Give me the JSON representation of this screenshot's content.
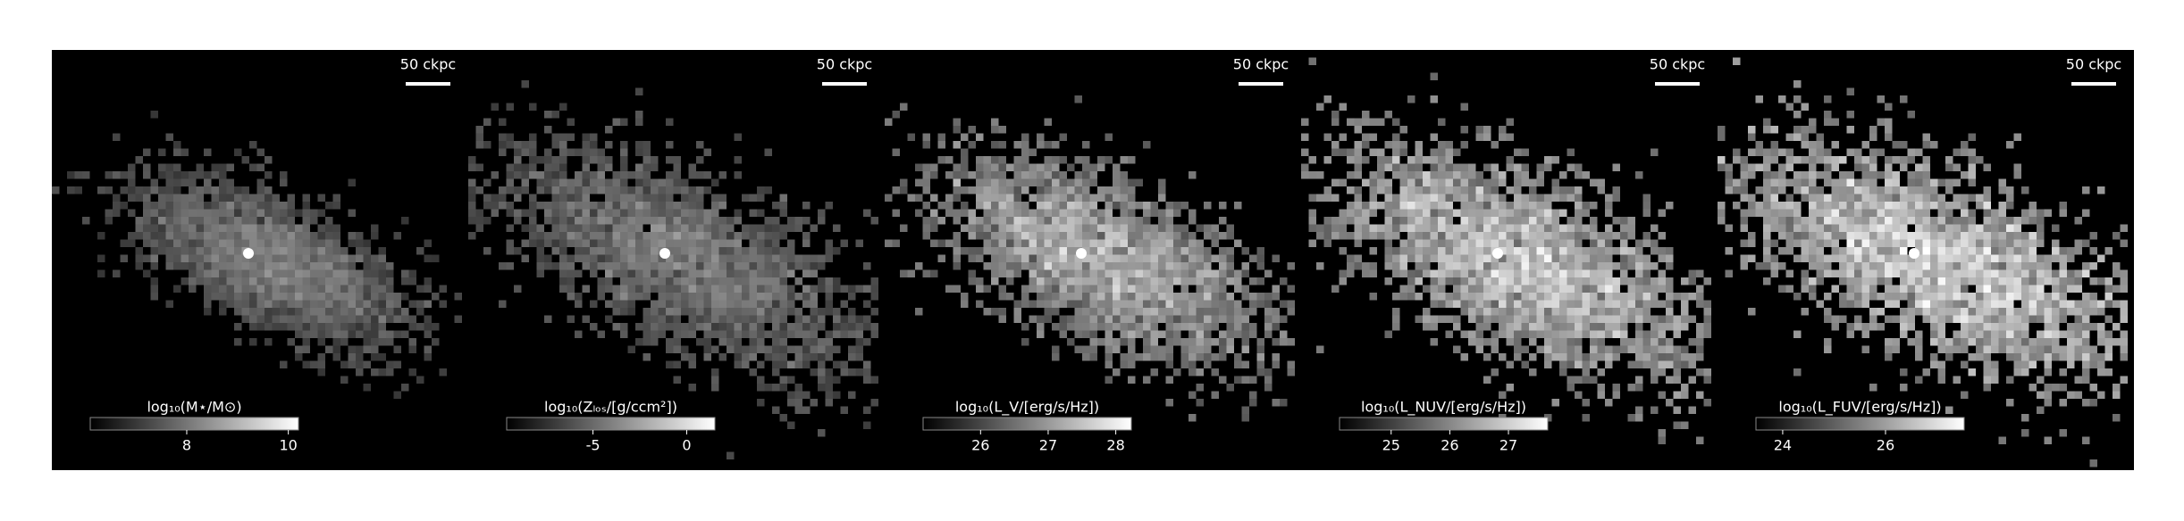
{
  "chart_data": [
    {
      "type": "image",
      "scalebar_label": "50 ckpc",
      "colorbar_label": "log₁₀(M⋆/M⊙)",
      "cmap": "gray",
      "clim": [
        6.1,
        10.2
      ],
      "cticks": [
        8,
        10
      ]
    },
    {
      "type": "image",
      "scalebar_label": "50 ckpc",
      "colorbar_label": "log₁₀(Zₗₒₛ/[g/ccm²])",
      "cmap": "gray",
      "clim": [
        -9.6,
        1.5
      ],
      "cticks": [
        -5,
        0
      ]
    },
    {
      "type": "image",
      "scalebar_label": "50 ckpc",
      "colorbar_label": "log₁₀(L_V/[erg/s/Hz])",
      "cmap": "gray",
      "clim": [
        25.15,
        28.23
      ],
      "cticks": [
        26,
        27,
        28
      ]
    },
    {
      "type": "image",
      "scalebar_label": "50 ckpc",
      "colorbar_label": "log₁₀(L_NUV/[erg/s/Hz])",
      "cmap": "gray",
      "clim": [
        24.12,
        27.67
      ],
      "cticks": [
        25,
        26,
        27
      ]
    },
    {
      "type": "image",
      "scalebar_label": "50 ckpc",
      "colorbar_label": "log₁₀(L_FUV/[erg/s/Hz])",
      "cmap": "gray",
      "clim": [
        23.48,
        27.53
      ],
      "cticks": [
        24,
        26
      ]
    }
  ]
}
